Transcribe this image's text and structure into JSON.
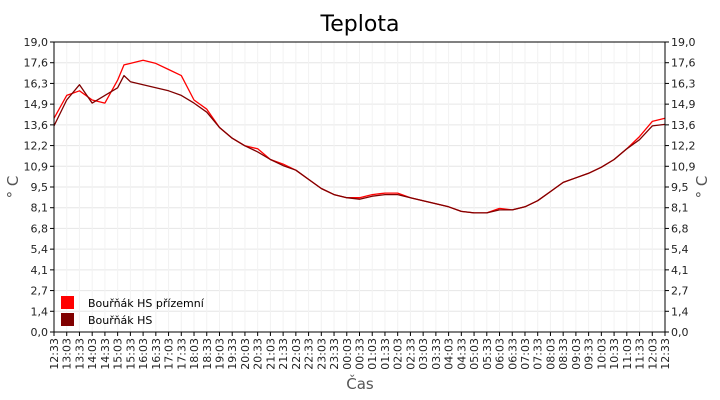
{
  "chart_data": {
    "type": "line",
    "title": "Teplota",
    "xlabel": "Čas",
    "ylabel": "° C",
    "ylim": [
      0,
      19
    ],
    "y_ticks": [
      "0,0",
      "1,4",
      "2,7",
      "4,1",
      "5,4",
      "6,8",
      "8,1",
      "9,5",
      "10,9",
      "12,2",
      "13,6",
      "14,9",
      "16,3",
      "17,6",
      "19,0"
    ],
    "x_ticks": [
      "12:33",
      "13:03",
      "13:33",
      "14:03",
      "14:33",
      "15:03",
      "15:33",
      "16:03",
      "16:33",
      "17:03",
      "17:33",
      "18:03",
      "18:33",
      "19:03",
      "19:33",
      "20:03",
      "20:33",
      "21:03",
      "21:33",
      "22:03",
      "22:33",
      "23:03",
      "23:33",
      "00:03",
      "00:33",
      "01:03",
      "01:33",
      "02:03",
      "02:33",
      "03:03",
      "03:33",
      "04:03",
      "04:33",
      "05:03",
      "05:33",
      "06:03",
      "06:33",
      "07:03",
      "07:33",
      "08:03",
      "08:33",
      "09:03",
      "09:33",
      "10:03",
      "10:33",
      "11:03",
      "11:33",
      "12:03",
      "12:33"
    ],
    "grid": true,
    "legend_position": "bottom-left",
    "x_unit": "minutes after 12:33",
    "series": [
      {
        "name": "Bouřňák HS přízemní",
        "color": "#ff0000",
        "x": [
          0,
          30,
          60,
          90,
          120,
          150,
          165,
          180,
          210,
          240,
          270,
          300,
          330,
          360,
          390,
          420,
          450,
          480,
          510,
          540,
          570,
          600,
          630,
          660,
          690,
          720,
          750,
          780,
          810,
          840,
          870,
          900,
          930,
          960,
          990,
          1020,
          1050,
          1080,
          1110,
          1140,
          1170,
          1200,
          1230,
          1260,
          1290,
          1320,
          1350,
          1380,
          1410,
          1440
        ],
        "y": [
          14.0,
          15.5,
          15.8,
          15.2,
          15.0,
          16.5,
          17.5,
          17.6,
          17.8,
          17.6,
          17.2,
          16.8,
          15.2,
          14.6,
          13.4,
          12.7,
          12.2,
          12.0,
          11.3,
          11.0,
          10.6,
          10.0,
          9.4,
          9.0,
          8.8,
          8.8,
          9.0,
          9.1,
          9.1,
          8.8,
          8.6,
          8.4,
          8.2,
          7.9,
          7.8,
          7.8,
          8.1,
          8.0,
          8.2,
          8.6,
          9.2,
          9.8,
          10.1,
          10.4,
          10.8,
          11.3,
          12.0,
          12.8,
          13.8,
          14.0
        ]
      },
      {
        "name": "Bouřňák HS",
        "color": "#800000",
        "x": [
          0,
          30,
          60,
          90,
          120,
          150,
          165,
          180,
          210,
          240,
          270,
          300,
          330,
          360,
          390,
          420,
          450,
          480,
          510,
          540,
          570,
          600,
          630,
          660,
          690,
          720,
          750,
          780,
          810,
          840,
          870,
          900,
          930,
          960,
          990,
          1020,
          1050,
          1080,
          1110,
          1140,
          1170,
          1200,
          1230,
          1260,
          1290,
          1320,
          1350,
          1380,
          1410,
          1440
        ],
        "y": [
          13.5,
          15.2,
          16.2,
          15.0,
          15.5,
          16.0,
          16.8,
          16.4,
          16.2,
          16.0,
          15.8,
          15.5,
          15.0,
          14.4,
          13.4,
          12.7,
          12.2,
          11.8,
          11.3,
          10.9,
          10.6,
          10.0,
          9.4,
          9.0,
          8.8,
          8.7,
          8.9,
          9.0,
          9.0,
          8.8,
          8.6,
          8.4,
          8.2,
          7.9,
          7.8,
          7.8,
          8.0,
          8.0,
          8.2,
          8.6,
          9.2,
          9.8,
          10.1,
          10.4,
          10.8,
          11.3,
          12.0,
          12.6,
          13.5,
          13.6
        ]
      }
    ]
  }
}
